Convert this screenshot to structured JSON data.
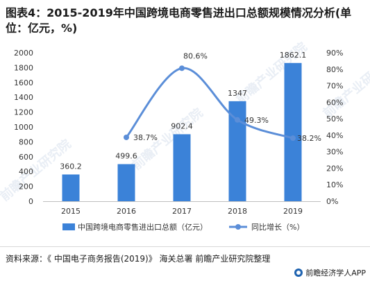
{
  "title": "图表4：2015-2019年中国跨境电商零售进出口总额规模情况分析(单位：亿元，%)",
  "footer": {
    "source": "资料来源：《 中国电子商务报告(2019)》 海关总署  前瞻产业研究院整理",
    "brand": "前瞻经济学人APP"
  },
  "watermark_text": "前瞻产业研究院",
  "colors": {
    "bar": "#3b82d8",
    "line": "#5b8ed8",
    "axis_text": "#333333",
    "axis_line": "#bfbfbf"
  },
  "chart_data": {
    "type": "bar",
    "categories": [
      "2015",
      "2016",
      "2017",
      "2018",
      "2019"
    ],
    "series": [
      {
        "name": "中国跨境电商零售进出口总额（亿元）",
        "type": "bar",
        "axis": "left",
        "values": [
          360.2,
          499.6,
          902.4,
          1347,
          1862.1
        ],
        "labels": [
          "360.2",
          "499.6",
          "902.4",
          "1347",
          "1862.1"
        ]
      },
      {
        "name": "同比增长（%）",
        "type": "line",
        "axis": "right",
        "values": [
          null,
          38.7,
          80.6,
          49.3,
          38.2
        ],
        "labels": [
          "",
          "38.7%",
          "80.6%",
          "49.3%",
          "38.2%"
        ]
      }
    ],
    "y_left": {
      "min": 0,
      "max": 2000,
      "ticks": [
        "0",
        "200",
        "400",
        "600",
        "800",
        "1000",
        "1200",
        "1400",
        "1600",
        "1800",
        "2000"
      ]
    },
    "y_right": {
      "min": 0,
      "max": 90,
      "ticks": [
        "0%",
        "10%",
        "20%",
        "30%",
        "40%",
        "50%",
        "60%",
        "70%",
        "80%",
        "90%"
      ]
    },
    "legend_position": "bottom",
    "grid": false
  }
}
